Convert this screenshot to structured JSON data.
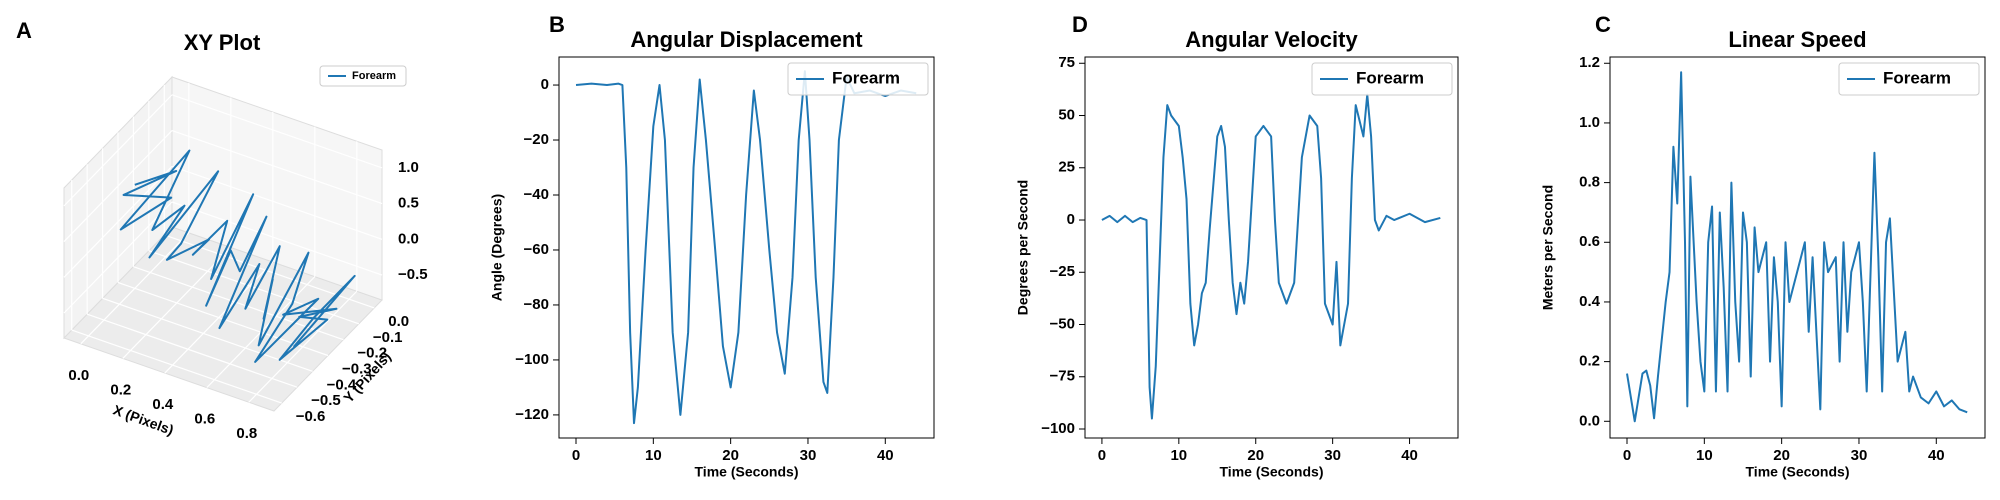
{
  "chart_data": [
    {
      "type": "line3d",
      "label": "A",
      "title": "XY Plot",
      "xlabel": "X (Pixels)",
      "ylabel": "Y (Pixels)",
      "xlim": [
        -0.08,
        0.92
      ],
      "ylim": [
        -0.65,
        0.05
      ],
      "zlim": [
        -0.85,
        1.25
      ],
      "xticks": [
        {
          "value": 0,
          "label": "0.0"
        },
        0.2,
        0.4,
        0.6,
        0.8
      ],
      "yticks": [
        {
          "value": 0,
          "label": "0.0"
        },
        {
          "value": -0.1,
          "label": "−0.1"
        },
        {
          "value": -0.2,
          "label": "−0.2"
        },
        {
          "value": -0.3,
          "label": "−0.3"
        },
        {
          "value": -0.4,
          "label": "−0.4"
        },
        {
          "value": -0.5,
          "label": "−0.5"
        },
        {
          "value": -0.6,
          "label": "−0.6"
        }
      ],
      "zticks": [
        {
          "value": -0.5,
          "label": "−0.5"
        },
        {
          "value": 0,
          "label": "0.0"
        },
        0.5,
        {
          "value": 1,
          "label": "1.0"
        }
      ],
      "legend": "upper right",
      "grid": true,
      "series": [
        {
          "name": "Forearm",
          "color": "#1f77b4",
          "x": [
            0.0,
            0.05,
            0.02,
            0.1,
            0.08,
            0.15,
            0.12,
            0.2,
            0.18,
            0.25,
            0.22,
            0.3,
            0.28,
            0.35,
            0.33,
            0.4,
            0.38,
            0.45,
            0.42,
            0.5,
            0.48,
            0.55,
            0.52,
            0.6,
            0.58,
            0.65,
            0.62,
            0.7,
            0.68,
            0.75,
            0.72,
            0.8,
            0.78,
            0.85,
            0.82,
            0.88,
            0.8,
            0.85,
            0.9,
            0.83
          ],
          "y": [
            -0.3,
            -0.1,
            -0.4,
            -0.2,
            -0.5,
            -0.15,
            -0.35,
            -0.25,
            -0.45,
            -0.1,
            -0.3,
            -0.5,
            -0.2,
            -0.4,
            -0.15,
            -0.35,
            -0.05,
            -0.45,
            -0.25,
            -0.3,
            -0.1,
            -0.5,
            -0.2,
            -0.4,
            -0.15,
            -0.35,
            -0.25,
            -0.45,
            -0.1,
            -0.3,
            -0.5,
            -0.2,
            -0.4,
            -0.15,
            -0.35,
            -0.25,
            -0.45,
            -0.3,
            -0.1,
            -0.4
          ],
          "z": [
            0.6,
            0.4,
            0.7,
            0.3,
            0.5,
            0.9,
            0.2,
            0.4,
            0.1,
            0.6,
            0.0,
            0.3,
            -0.1,
            0.2,
            0.1,
            -0.2,
            0.3,
            -0.3,
            0.0,
            -0.1,
            0.2,
            -0.4,
            -0.2,
            -0.3,
            0.0,
            -0.5,
            -0.2,
            -0.6,
            -0.1,
            -0.3,
            -0.7,
            -0.4,
            -0.2,
            -0.6,
            -0.3,
            -0.5,
            -0.7,
            -0.4,
            -0.2,
            -0.6
          ]
        }
      ]
    },
    {
      "type": "line",
      "label": "B",
      "title": "Angular Displacement",
      "xlabel": "Time (Seconds)",
      "ylabel": "Angle (Degrees)",
      "xlim": [
        -2.2,
        46.3
      ],
      "ylim": [
        -128.4,
        10.2
      ],
      "xticks": [
        0,
        10,
        20,
        30,
        40
      ],
      "yticks": [
        {
          "value": -120,
          "label": "−120"
        },
        {
          "value": -100,
          "label": "−100"
        },
        {
          "value": -80,
          "label": "−80"
        },
        {
          "value": -60,
          "label": "−60"
        },
        {
          "value": -40,
          "label": "−40"
        },
        {
          "value": -20,
          "label": "−20"
        },
        0
      ],
      "legend": "upper right",
      "x": [
        0,
        2,
        4,
        5.5,
        6,
        6.5,
        7,
        7.5,
        8,
        9,
        10,
        10.8,
        11.5,
        12.5,
        13.5,
        14.5,
        15.2,
        16,
        16.8,
        18,
        19,
        20,
        21,
        22,
        23,
        23.8,
        25,
        26,
        27,
        28,
        28.8,
        29.6,
        30.2,
        31,
        32,
        32.5,
        33.3,
        34,
        35,
        36,
        38,
        40,
        42,
        44
      ],
      "series": [
        {
          "name": "Forearm",
          "color": "#1f77b4",
          "values": [
            0,
            0.5,
            0,
            0.5,
            0,
            -30,
            -90,
            -123,
            -110,
            -60,
            -15,
            0,
            -20,
            -90,
            -120,
            -90,
            -30,
            2,
            -20,
            -60,
            -95,
            -110,
            -90,
            -40,
            -2,
            -20,
            -60,
            -90,
            -105,
            -70,
            -20,
            5,
            -20,
            -70,
            -108,
            -112,
            -70,
            -20,
            3,
            -3,
            -2,
            -4,
            -2,
            -3
          ]
        }
      ]
    },
    {
      "type": "line",
      "label": "D",
      "title": "Angular Velocity",
      "xlabel": "Time (Seconds)",
      "ylabel": "Degrees per Second",
      "xlim": [
        -2.2,
        46.3
      ],
      "ylim": [
        -104.3,
        78
      ],
      "xticks": [
        0,
        10,
        20,
        30,
        40
      ],
      "yticks": [
        {
          "value": -100,
          "label": "−100"
        },
        {
          "value": -75,
          "label": "−75"
        },
        {
          "value": -50,
          "label": "−50"
        },
        {
          "value": -25,
          "label": "−25"
        },
        0,
        25,
        50,
        75
      ],
      "legend": "upper right",
      "x": [
        0,
        1,
        2,
        3,
        4,
        5,
        5.8,
        6.2,
        6.5,
        7,
        7.5,
        8,
        8.5,
        9,
        10,
        10.5,
        11,
        11.5,
        12,
        12.5,
        13,
        13.5,
        14,
        15,
        15.5,
        16,
        16.5,
        17,
        17.5,
        18,
        18.5,
        19,
        20,
        21,
        22,
        22.5,
        23,
        24,
        25,
        26,
        27,
        28,
        28.5,
        29,
        30,
        30.5,
        31,
        32,
        32.5,
        33,
        34,
        34.5,
        35,
        35.5,
        36,
        37,
        38,
        40,
        42,
        44
      ],
      "series": [
        {
          "name": "Forearm",
          "color": "#1f77b4",
          "values": [
            0,
            2,
            -1,
            2,
            -1,
            1,
            0,
            -80,
            -95,
            -70,
            -20,
            30,
            55,
            50,
            45,
            30,
            10,
            -40,
            -60,
            -50,
            -35,
            -30,
            -5,
            40,
            45,
            35,
            0,
            -30,
            -45,
            -30,
            -40,
            -20,
            40,
            45,
            40,
            0,
            -30,
            -40,
            -30,
            30,
            50,
            45,
            20,
            -40,
            -50,
            -20,
            -60,
            -40,
            20,
            55,
            40,
            60,
            40,
            0,
            -5,
            2,
            0,
            3,
            -1,
            1
          ]
        }
      ]
    },
    {
      "type": "line",
      "label": "C",
      "title": "Linear Speed",
      "xlabel": "Time (Seconds)",
      "ylabel": "Meters per Second",
      "xlim": [
        -2.2,
        46.3
      ],
      "ylim": [
        -0.056,
        1.221
      ],
      "xticks": [
        0,
        10,
        20,
        30,
        40
      ],
      "yticks": [
        {
          "value": 0,
          "label": "0.0"
        },
        0.2,
        0.4,
        0.6,
        0.8,
        {
          "value": 1,
          "label": "1.0"
        },
        1.2
      ],
      "legend": "upper right",
      "x": [
        0,
        1,
        2,
        2.5,
        3,
        3.5,
        4,
        5,
        5.5,
        6,
        6.5,
        7,
        7.5,
        7.8,
        8.2,
        9,
        9.5,
        10,
        10.5,
        11,
        11.5,
        12,
        12.5,
        13,
        13.5,
        14,
        14.5,
        15,
        15.5,
        16,
        16.5,
        17,
        18,
        18.5,
        19,
        19.5,
        20,
        20.5,
        21,
        22,
        23,
        23.5,
        24,
        25,
        25.5,
        26,
        27,
        27.5,
        28,
        28.5,
        29,
        30,
        30.5,
        31,
        31.5,
        32,
        32.5,
        33,
        33.5,
        34,
        35,
        36,
        36.5,
        37,
        38,
        39,
        40,
        41,
        42,
        43,
        44
      ],
      "series": [
        {
          "name": "Forearm",
          "color": "#1f77b4",
          "values": [
            0.16,
            0,
            0.16,
            0.17,
            0.12,
            0.01,
            0.15,
            0.4,
            0.5,
            0.92,
            0.73,
            1.17,
            0.6,
            0.05,
            0.82,
            0.4,
            0.2,
            0.1,
            0.6,
            0.72,
            0.1,
            0.7,
            0.45,
            0.1,
            0.8,
            0.4,
            0.2,
            0.7,
            0.6,
            0.15,
            0.65,
            0.5,
            0.6,
            0.2,
            0.55,
            0.4,
            0.05,
            0.6,
            0.4,
            0.5,
            0.6,
            0.3,
            0.55,
            0.04,
            0.6,
            0.5,
            0.55,
            0.2,
            0.6,
            0.3,
            0.5,
            0.6,
            0.4,
            0.1,
            0.5,
            0.9,
            0.55,
            0.1,
            0.6,
            0.68,
            0.2,
            0.3,
            0.1,
            0.15,
            0.08,
            0.06,
            0.1,
            0.05,
            0.07,
            0.04,
            0.03
          ]
        }
      ]
    }
  ]
}
